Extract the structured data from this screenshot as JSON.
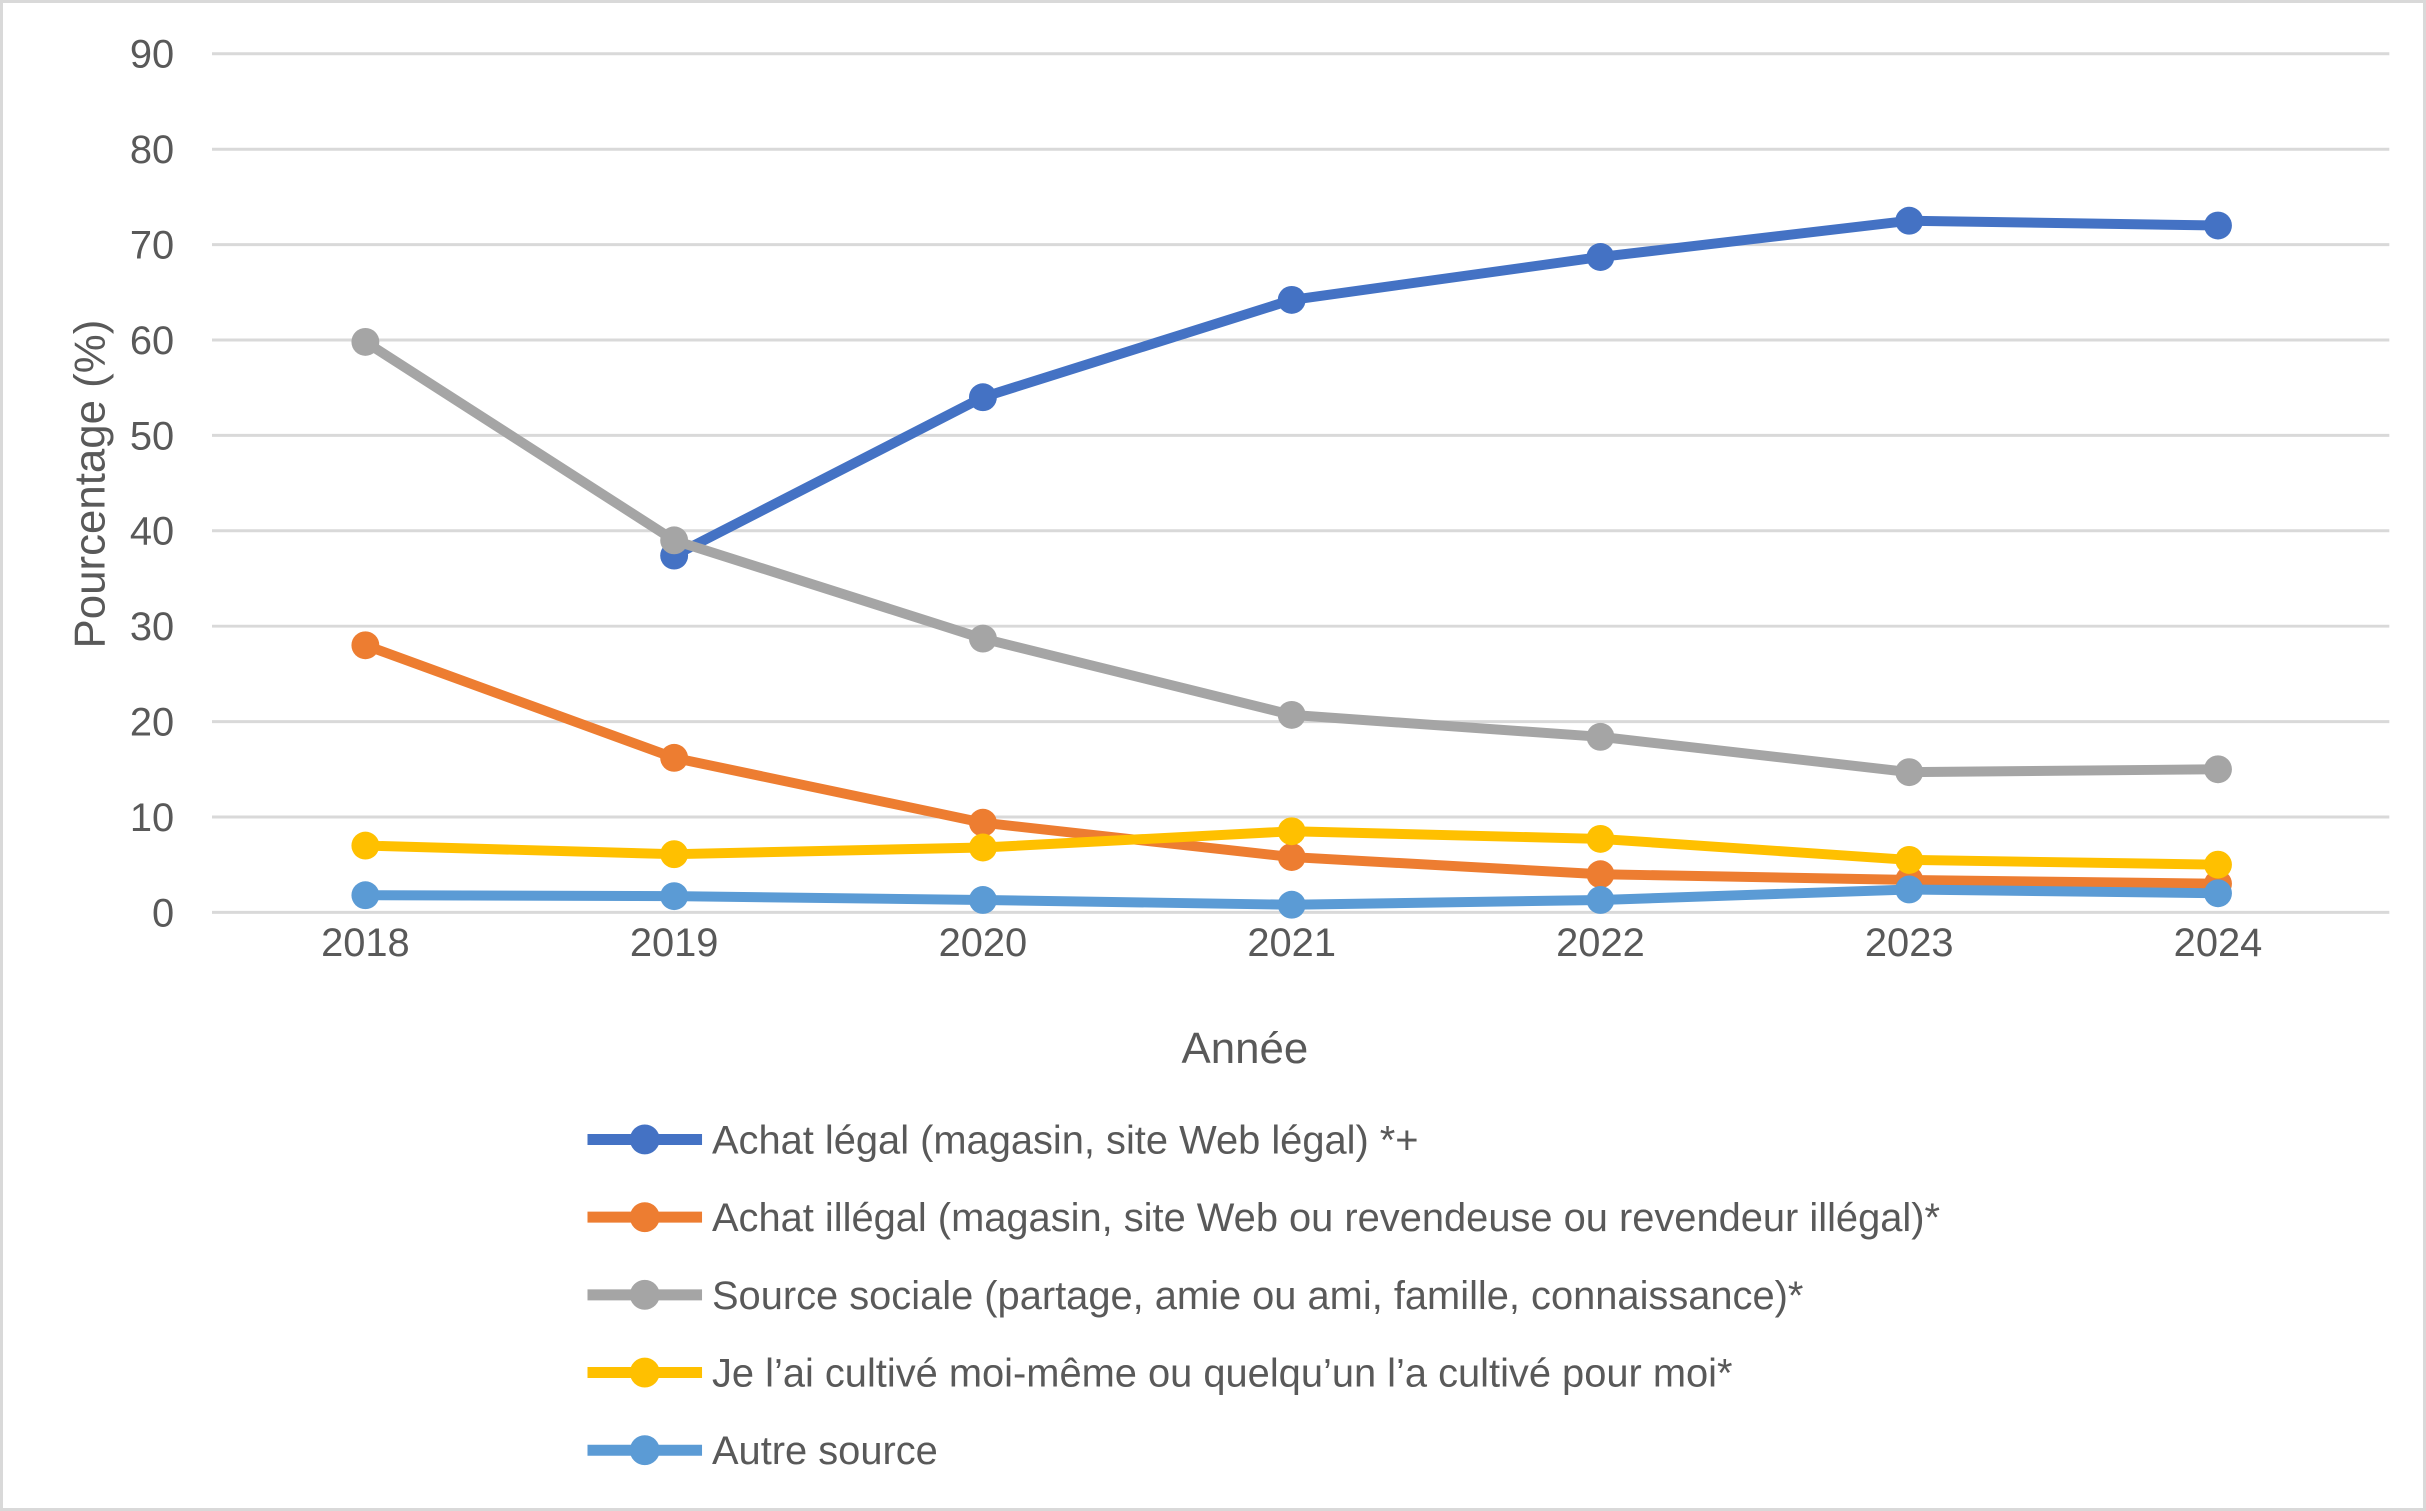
{
  "chart_data": {
    "type": "line",
    "title": "",
    "xlabel": "Année",
    "ylabel": "Pourcentage (%)",
    "ylim": [
      0,
      90
    ],
    "ytick_step": 10,
    "yticks": [
      90,
      80,
      70,
      60,
      50,
      40,
      30,
      20,
      10,
      0
    ],
    "categories": [
      "2018",
      "2019",
      "2020",
      "2021",
      "2022",
      "2023",
      "2024"
    ],
    "grid": "horizontal",
    "legend_position": "bottom-left",
    "marker": "circle",
    "series": [
      {
        "name": "Achat légal (magasin, site Web légal) *+",
        "color": "#4472C4",
        "values": [
          null,
          37.4,
          54,
          64.2,
          68.7,
          72.5,
          72
        ]
      },
      {
        "name": "Achat illégal (magasin, site Web ou revendeuse ou revendeur illégal)*",
        "color": "#ED7D31",
        "values": [
          28,
          16.2,
          9.4,
          5.8,
          4,
          3.4,
          3
        ]
      },
      {
        "name": "Source sociale (partage, amie ou ami, famille, connaissance)*",
        "color": "#A5A5A5",
        "values": [
          59.8,
          39,
          28.7,
          20.7,
          18.4,
          14.7,
          15
        ]
      },
      {
        "name": "Je l’ai cultivé moi-même ou quelqu’un l’a cultivé pour moi*",
        "color": "#FFC000",
        "values": [
          7,
          6.1,
          6.8,
          8.5,
          7.7,
          5.5,
          5
        ]
      },
      {
        "name": "Autre source",
        "color": "#5B9BD5",
        "values": [
          1.8,
          1.7,
          1.3,
          0.8,
          1.3,
          2.4,
          2
        ]
      }
    ]
  },
  "colors": {
    "grid": "#D9D9D9",
    "text": "#595959",
    "border": "#D9D9D9",
    "background": "#FFFFFF"
  }
}
